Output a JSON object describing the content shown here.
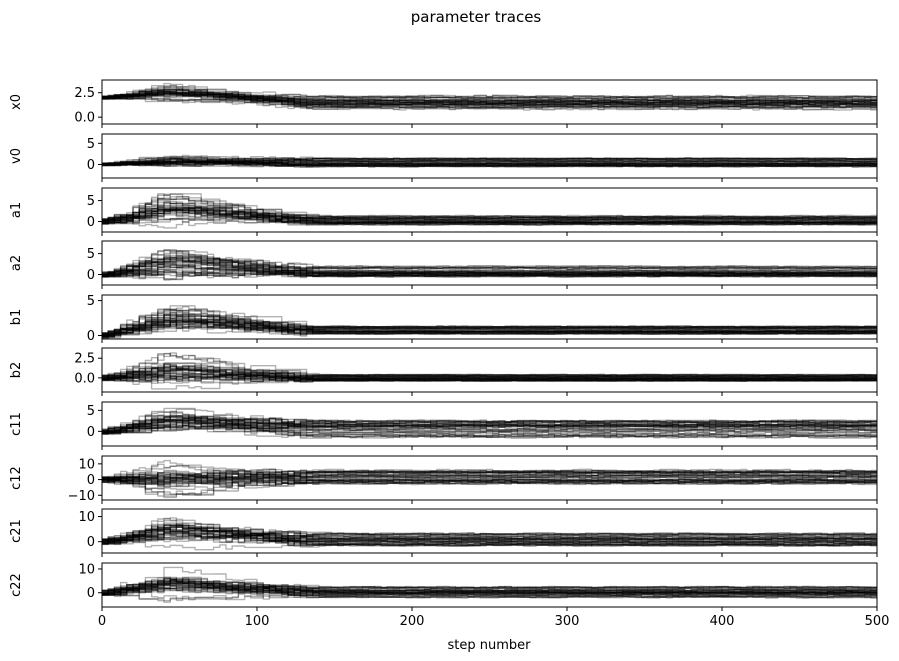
{
  "chart_data": {
    "type": "line",
    "title": "parameter traces",
    "xlabel": "step number",
    "xlim": [
      0,
      500
    ],
    "xticks": [
      0,
      100,
      200,
      300,
      400,
      500
    ],
    "line_color": "#000000",
    "line_alpha": 0.3,
    "grid": false,
    "legend": "none",
    "panels": [
      {
        "ylabel": "x0",
        "ylim": [
          -0.7,
          3.8
        ],
        "yticks": [
          0.0,
          2.5
        ],
        "ytick_labels": [
          "0.0",
          "2.5"
        ],
        "envelope": {
          "start": 2.0,
          "early_peak": [
            1.6,
            3.6
          ],
          "final_band": [
            0.8,
            2.2
          ]
        }
      },
      {
        "ylabel": "v0",
        "ylim": [
          -3.2,
          7.2
        ],
        "yticks": [
          0,
          5
        ],
        "ytick_labels": [
          "0",
          "5"
        ],
        "envelope": {
          "start": 0.0,
          "early_peak": [
            -1.5,
            2.5
          ],
          "final_band": [
            -0.5,
            1.5
          ]
        }
      },
      {
        "ylabel": "a1",
        "ylim": [
          -2.5,
          8.0
        ],
        "yticks": [
          0,
          5
        ],
        "ytick_labels": [
          "0",
          "5"
        ],
        "envelope": {
          "start": 0.0,
          "early_peak": [
            -1.0,
            7.5
          ],
          "final_band": [
            -0.8,
            1.5
          ]
        }
      },
      {
        "ylabel": "a2",
        "ylim": [
          -2.5,
          8.0
        ],
        "yticks": [
          0,
          5
        ],
        "ytick_labels": [
          "0",
          "5"
        ],
        "envelope": {
          "start": 0.0,
          "early_peak": [
            -1.0,
            7.0
          ],
          "final_band": [
            -0.5,
            2.0
          ]
        }
      },
      {
        "ylabel": "b1",
        "ylim": [
          -0.5,
          5.8
        ],
        "yticks": [
          0,
          5
        ],
        "ytick_labels": [
          "0",
          "5"
        ],
        "envelope": {
          "start": 0.0,
          "early_peak": [
            -0.3,
            5.2
          ],
          "final_band": [
            0.2,
            1.3
          ]
        }
      },
      {
        "ylabel": "b2",
        "ylim": [
          -1.8,
          3.8
        ],
        "yticks": [
          0.0,
          2.5
        ],
        "ytick_labels": [
          "0.0",
          "2.5"
        ],
        "envelope": {
          "start": 0.0,
          "early_peak": [
            -1.5,
            3.3
          ],
          "final_band": [
            -0.4,
            0.4
          ]
        }
      },
      {
        "ylabel": "c11",
        "ylim": [
          -3.5,
          7.0
        ],
        "yticks": [
          0,
          5
        ],
        "ytick_labels": [
          "0",
          "5"
        ],
        "envelope": {
          "start": 0.0,
          "early_peak": [
            -2.0,
            6.5
          ],
          "final_band": [
            -1.5,
            2.5
          ]
        }
      },
      {
        "ylabel": "c12",
        "ylim": [
          -13.0,
          15.0
        ],
        "yticks": [
          -10,
          0,
          10
        ],
        "ytick_labels": [
          "−10",
          "0",
          "10"
        ],
        "envelope": {
          "start": 0.0,
          "early_peak": [
            -12.0,
            13.0
          ],
          "final_band": [
            -3.0,
            6.0
          ]
        }
      },
      {
        "ylabel": "c21",
        "ylim": [
          -4.5,
          13.0
        ],
        "yticks": [
          0,
          10
        ],
        "ytick_labels": [
          "0",
          "10"
        ],
        "envelope": {
          "start": 0.0,
          "early_peak": [
            -3.0,
            12.0
          ],
          "final_band": [
            -1.5,
            3.5
          ]
        }
      },
      {
        "ylabel": "c22",
        "ylim": [
          -6.0,
          12.5
        ],
        "yticks": [
          0,
          10
        ],
        "ytick_labels": [
          "0",
          "10"
        ],
        "envelope": {
          "start": 0.0,
          "early_peak": [
            -4.0,
            11.0
          ],
          "final_band": [
            -2.0,
            2.5
          ]
        }
      }
    ]
  }
}
